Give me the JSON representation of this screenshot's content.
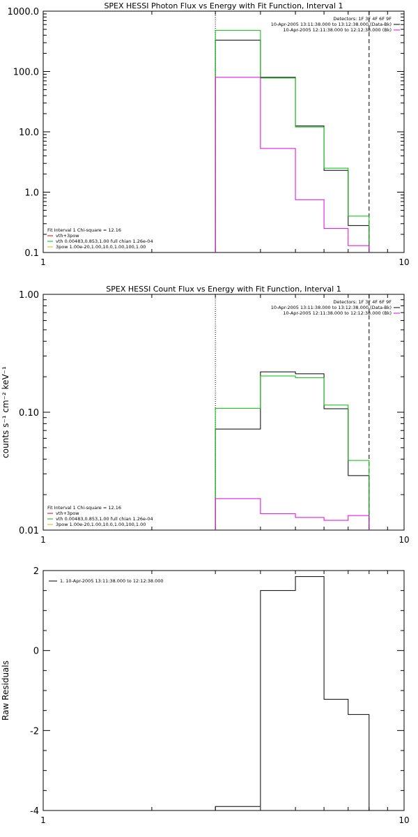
{
  "chart_data": [
    {
      "type": "line",
      "title": "SPEX HESSI Photon Flux vs Energy with Fit Function, Interval 1",
      "xlabel": "",
      "ylabel": "",
      "xscale": "log",
      "yscale": "log",
      "xlim": [
        1,
        10
      ],
      "ylim": [
        0.1,
        1000
      ],
      "x_ticks": [
        "1",
        "10"
      ],
      "y_ticks": [
        "0.1",
        "1.0",
        "10.0",
        "100.0",
        "1000.0"
      ],
      "y_tick_values": [
        0.1,
        1,
        10,
        100,
        1000
      ],
      "bin_edges": [
        3,
        4,
        5,
        6,
        7,
        8
      ],
      "vlines": [
        {
          "x": 3,
          "style": "dotted",
          "color": "#000000"
        },
        {
          "x": 8,
          "style": "dashed",
          "color": "#000000"
        }
      ],
      "series": [
        {
          "color": "#000000",
          "values": [
            330,
            80,
            12.5,
            2.3,
            0.28
          ]
        },
        {
          "color": "#00c000",
          "values": [
            480,
            78,
            12,
            2.5,
            0.4
          ]
        },
        {
          "color": "#e000e0",
          "values": [
            80,
            5.3,
            0.75,
            0.25,
            0.13
          ]
        }
      ],
      "legend_top": {
        "placement": "top-right",
        "header": "Detectors: 1F 3F 4F 6F 9F",
        "entries": [
          {
            "text": "10-Apr-2005 13:11:38.000 to 13:12:38.000 (Data-Bk)",
            "color": "#000000"
          },
          {
            "text": "10-Apr-2005 12:11:38.000 to 12:12:38.000 (Bk)",
            "color": "#e000e0"
          }
        ]
      },
      "legend_bottom": {
        "placement": "bottom-left",
        "header": "Fit Interval 1    Chi-square = 12.16",
        "entries": [
          {
            "text": "vth+3pow",
            "color": "#e00000"
          },
          {
            "text": "vth 0.00483,0.853,1.00  full chian 1.26e-04",
            "color": "#00c000"
          },
          {
            "text": "3pow 1.00e-20,1.00,10.0,1.00,100,1.00",
            "color": "#e0b000"
          }
        ]
      }
    },
    {
      "type": "line",
      "title": "SPEX HESSI Count Flux vs Energy with Fit Function, Interval 1",
      "xlabel": "",
      "ylabel": "counts s⁻¹ cm⁻² keV⁻¹",
      "xscale": "log",
      "yscale": "log",
      "xlim": [
        1,
        10
      ],
      "ylim": [
        0.01,
        1
      ],
      "x_ticks": [
        "1",
        "10"
      ],
      "y_ticks": [
        "0.01",
        "0.10",
        "1.00"
      ],
      "y_tick_values": [
        0.01,
        0.1,
        1
      ],
      "bin_edges": [
        3,
        4,
        5,
        6,
        7,
        8
      ],
      "vlines": [
        {
          "x": 3,
          "style": "dotted",
          "color": "#000000"
        },
        {
          "x": 8,
          "style": "dashed",
          "color": "#000000"
        }
      ],
      "series": [
        {
          "color": "#000000",
          "values": [
            0.072,
            0.22,
            0.212,
            0.107,
            0.029
          ]
        },
        {
          "color": "#00c000",
          "values": [
            0.108,
            0.203,
            0.196,
            0.115,
            0.039
          ]
        },
        {
          "color": "#e000e0",
          "values": [
            0.0185,
            0.0138,
            0.0128,
            0.0121,
            0.0133
          ]
        }
      ],
      "legend_top": {
        "placement": "top-right",
        "header": "Detectors: 1F 3F 4F 6F 9F",
        "entries": [
          {
            "text": "10-Apr-2005 13:11:38.000 to 13:12:38.000 (Data-Bk)",
            "color": "#000000"
          },
          {
            "text": "10-Apr-2005 12:11:38.000 to 12:12:38.000 (Bk)",
            "color": "#e000e0"
          }
        ]
      },
      "legend_bottom": {
        "placement": "bottom-left",
        "header": "Fit Interval 1    Chi-square = 12.16",
        "entries": [
          {
            "text": "vth+3pow",
            "color": "#e00000"
          },
          {
            "text": "vth 0.00483,0.853,1.00  full chian 1.26e-04",
            "color": "#00c000"
          },
          {
            "text": "3pow 1.00e-20,1.00,10.0,1.00,100,1.00",
            "color": "#e0b000"
          }
        ]
      }
    },
    {
      "type": "line",
      "title": "",
      "xlabel": "",
      "ylabel": "Raw Residuals",
      "xscale": "log",
      "yscale": "linear",
      "xlim": [
        1,
        10
      ],
      "ylim": [
        -4,
        2
      ],
      "x_ticks": [
        "1",
        "10"
      ],
      "y_ticks": [
        "-4",
        "-2",
        "0",
        "2"
      ],
      "y_tick_values": [
        -4,
        -2,
        0,
        2
      ],
      "bin_edges": [
        3,
        4,
        5,
        6,
        7,
        8
      ],
      "vlines": [],
      "series": [
        {
          "color": "#000000",
          "values": [
            -3.9,
            1.5,
            1.85,
            -1.22,
            -1.6
          ]
        }
      ],
      "legend_top": {
        "placement": "top-left",
        "header": "",
        "entries": [
          {
            "text": "1. 10-Apr-2005 13:11:38.000 to 12:12:38.000",
            "color": "#000000"
          }
        ]
      },
      "legend_bottom": null
    }
  ]
}
